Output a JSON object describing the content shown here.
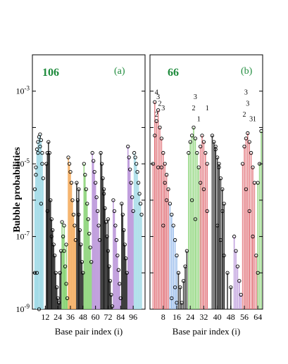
{
  "figure": {
    "ylabel": "Bubble probabilities"
  },
  "chart_data": [
    {
      "type": "scatter",
      "panel_tag": "(a)",
      "panel_number": "106",
      "xlabel": "Base pair index (i)",
      "ylabel": "Bubble probabilities",
      "xlim": [
        1,
        106
      ],
      "ylim": [
        1e-09,
        0.01
      ],
      "yscale": "log",
      "xticks": [
        12,
        24,
        36,
        48,
        60,
        72,
        84,
        96
      ],
      "yticks": [
        "10^-9",
        "10^-7",
        "10^-5",
        "10^-3"
      ],
      "point_colors": {
        "cyan": "#9fd9e6",
        "black": "#111111",
        "orange": "#f2a14a",
        "green": "#7fcf6a",
        "purple": "#b38ad6"
      },
      "series": [
        {
          "color": "cyan",
          "points": [
            [
              2,
              2e-06
            ],
            [
              3,
              8e-06
            ],
            [
              4,
              2.5e-05
            ],
            [
              5,
              4e-05
            ],
            [
              6,
              5.5e-05
            ],
            [
              7,
              6.5e-05
            ],
            [
              8,
              4.5e-05
            ],
            [
              9,
              2e-05
            ],
            [
              3,
              5e-06
            ],
            [
              5,
              2e-05
            ],
            [
              7,
              3e-05
            ],
            [
              9,
              1e-05
            ],
            [
              2,
              1e-08
            ],
            [
              4,
              1e-08
            ],
            [
              6,
              1e-09
            ],
            [
              8,
              8e-07
            ],
            [
              10,
              4e-06
            ]
          ]
        },
        {
          "color": "black",
          "points": [
            [
              13,
              1e-05
            ],
            [
              14,
              2e-05
            ],
            [
              15,
              4e-05
            ],
            [
              16,
              2e-05
            ],
            [
              17,
              1e-06
            ],
            [
              18,
              3e-07
            ],
            [
              19,
              1.5e-07
            ],
            [
              20,
              6e-08
            ],
            [
              21,
              3e-08
            ],
            [
              22,
              1e-08
            ],
            [
              23,
              4e-09
            ],
            [
              24,
              2e-09
            ],
            [
              25,
              1.5e-09
            ],
            [
              26,
              1e-08
            ],
            [
              27,
              4e-08
            ],
            [
              14,
              5e-07
            ],
            [
              18,
              1e-07
            ]
          ]
        },
        {
          "color": "green",
          "points": [
            [
              28,
              2.5e-07
            ],
            [
              29,
              1e-07
            ],
            [
              30,
              4e-08
            ],
            [
              31,
              1.5e-08
            ],
            [
              32,
              5e-09
            ],
            [
              33,
              2e-09
            ],
            [
              30,
              2e-07
            ],
            [
              32,
              6e-08
            ]
          ]
        },
        {
          "color": "orange",
          "points": [
            [
              34,
              1.5e-05
            ],
            [
              35,
              1e-05
            ],
            [
              36,
              6e-06
            ],
            [
              37,
              3e-06
            ],
            [
              38,
              1e-06
            ],
            [
              39,
              4e-07
            ],
            [
              40,
              2e-07
            ],
            [
              41,
              8e-08
            ]
          ]
        },
        {
          "color": "black",
          "points": [
            [
              42,
              3e-06
            ],
            [
              43,
              1e-06
            ],
            [
              44,
              4e-07
            ],
            [
              45,
              1.5e-07
            ],
            [
              46,
              6e-08
            ],
            [
              47,
              2e-08
            ],
            [
              48,
              1e-08
            ],
            [
              44,
              2e-06
            ]
          ]
        },
        {
          "color": "green",
          "points": [
            [
              49,
              1e-05
            ],
            [
              50,
              5e-06
            ],
            [
              51,
              2e-06
            ],
            [
              52,
              8e-07
            ],
            [
              53,
              3e-07
            ],
            [
              54,
              1.2e-07
            ],
            [
              55,
              5e-08
            ],
            [
              56,
              2e-08
            ]
          ]
        },
        {
          "color": "purple",
          "points": [
            [
              57,
              2e-05
            ],
            [
              58,
              1.2e-05
            ],
            [
              59,
              6e-06
            ],
            [
              60,
              3e-06
            ],
            [
              61,
              1.2e-06
            ],
            [
              62,
              5e-07
            ],
            [
              63,
              2e-07
            ],
            [
              64,
              8e-08
            ]
          ]
        },
        {
          "color": "black",
          "points": [
            [
              65,
              2e-05
            ],
            [
              66,
              1e-05
            ],
            [
              67,
              4e-06
            ],
            [
              68,
              1.5e-06
            ],
            [
              69,
              6e-07
            ],
            [
              70,
              2.5e-07
            ],
            [
              71,
              1e-07
            ],
            [
              72,
              4e-08
            ],
            [
              73,
              1.5e-08
            ],
            [
              74,
              6e-09
            ],
            [
              75,
              2.5e-09
            ],
            [
              76,
              1.2e-09
            ],
            [
              68,
              2e-06
            ],
            [
              72,
              3e-07
            ]
          ]
        },
        {
          "color": "purple",
          "points": [
            [
              77,
              1e-06
            ],
            [
              78,
              5e-07
            ],
            [
              79,
              2e-07
            ],
            [
              80,
              8e-08
            ],
            [
              81,
              3e-08
            ],
            [
              82,
              1.2e-08
            ],
            [
              83,
              5e-09
            ],
            [
              84,
              2e-09
            ]
          ]
        },
        {
          "color": "black",
          "points": [
            [
              85,
              8e-07
            ],
            [
              86,
              4e-07
            ],
            [
              87,
              1.5e-07
            ],
            [
              88,
              6e-08
            ],
            [
              89,
              2.5e-08
            ],
            [
              90,
              1e-08
            ]
          ]
        },
        {
          "color": "purple",
          "points": [
            [
              91,
              3e-05
            ],
            [
              92,
              1.5e-05
            ],
            [
              93,
              7e-06
            ],
            [
              94,
              3e-06
            ],
            [
              95,
              1.2e-06
            ],
            [
              96,
              5e-07
            ]
          ]
        },
        {
          "color": "cyan",
          "points": [
            [
              97,
              2e-05
            ],
            [
              98,
              1.5e-05
            ],
            [
              99,
              1e-05
            ],
            [
              100,
              6e-06
            ],
            [
              101,
              3e-06
            ],
            [
              102,
              1.5e-06
            ],
            [
              103,
              8e-07
            ],
            [
              104,
              4e-07
            ]
          ]
        }
      ]
    },
    {
      "type": "scatter",
      "panel_tag": "(b)",
      "panel_number": "66",
      "xlabel": "Base pair index (i)",
      "xlim": [
        1,
        66
      ],
      "ylim": [
        1e-09,
        0.01
      ],
      "yscale": "log",
      "xticks": [
        8,
        16,
        24,
        32,
        40,
        48,
        56,
        64
      ],
      "point_colors": {
        "red": "#e06a72",
        "black": "#111111",
        "green": "#7fcf6a",
        "blue": "#8bb3e8",
        "purple": "#b38ad6"
      },
      "annotations": [
        {
          "text": "4",
          "x": 4,
          "y": 0.0008
        },
        {
          "text": "2",
          "x": 4,
          "y": 0.0002
        },
        {
          "text": "3",
          "x": 5,
          "y": 0.0006
        },
        {
          "text": "2",
          "x": 6,
          "y": 0.0004
        },
        {
          "text": "3",
          "x": 8,
          "y": 0.0003
        },
        {
          "text": "3",
          "x": 27,
          "y": 0.0006
        },
        {
          "text": "2",
          "x": 26,
          "y": 0.0003
        },
        {
          "text": "1",
          "x": 29,
          "y": 0.00015
        },
        {
          "text": "1",
          "x": 34,
          "y": 0.0003
        },
        {
          "text": "3",
          "x": 57,
          "y": 0.0008
        },
        {
          "text": "3",
          "x": 58,
          "y": 0.0004
        },
        {
          "text": "2",
          "x": 56,
          "y": 0.0002
        },
        {
          "text": "3",
          "x": 60,
          "y": 0.00015
        },
        {
          "text": "1",
          "x": 62,
          "y": 0.00015
        }
      ],
      "series": [
        {
          "color": "red",
          "points": [
            [
              2,
              1e-05
            ],
            [
              3,
              0.0005
            ],
            [
              4,
              0.00015
            ],
            [
              5,
              0.0003
            ],
            [
              6,
              0.0001
            ],
            [
              7,
              5e-05
            ],
            [
              8,
              2e-05
            ],
            [
              9,
              1e-05
            ],
            [
              10,
              5e-06
            ],
            [
              11,
              2e-06
            ],
            [
              3,
              6e-05
            ],
            [
              5,
              8e-06
            ],
            [
              7,
              8e-06
            ],
            [
              9,
              3e-06
            ],
            [
              10,
              1e-06
            ],
            [
              8,
              2e-07
            ]
          ]
        },
        {
          "color": "blue",
          "points": [
            [
              12,
              8e-07
            ],
            [
              13,
              4e-07
            ],
            [
              14,
              2e-07
            ],
            [
              15,
              8e-08
            ],
            [
              16,
              3e-08
            ],
            [
              13,
              2e-09
            ],
            [
              15,
              4e-09
            ],
            [
              16,
              1.5e-09
            ]
          ]
        },
        {
          "color": "black",
          "points": [
            [
              17,
              1e-08
            ],
            [
              18,
              4e-09
            ],
            [
              19,
              1.5e-09
            ],
            [
              20,
              6e-09
            ],
            [
              21,
              1.5e-08
            ],
            [
              22,
              4e-08
            ]
          ]
        },
        {
          "color": "green",
          "points": [
            [
              23,
              2e-05
            ],
            [
              24,
              4e-05
            ],
            [
              25,
              6e-05
            ],
            [
              26,
              0.0001
            ],
            [
              27,
              5e-05
            ],
            [
              28,
              2e-05
            ],
            [
              29,
              8e-06
            ],
            [
              30,
              3e-06
            ],
            [
              25,
              1e-06
            ],
            [
              27,
              3e-07
            ]
          ]
        },
        {
          "color": "red",
          "points": [
            [
              30,
              3e-05
            ],
            [
              31,
              6e-05
            ],
            [
              32,
              4e-05
            ],
            [
              33,
              2e-05
            ],
            [
              34,
              1e-05
            ],
            [
              32,
              2e-06
            ],
            [
              34,
              5e-07
            ]
          ]
        },
        {
          "color": "black",
          "points": [
            [
              37,
              6e-05
            ],
            [
              38,
              4e-05
            ],
            [
              39,
              2.5e-05
            ],
            [
              40,
              1.5e-05
            ],
            [
              41,
              8e-06
            ],
            [
              42,
              4e-06
            ],
            [
              43,
              2e-06
            ],
            [
              44,
              8e-07
            ],
            [
              39,
              3e-05
            ],
            [
              41,
              1e-05
            ],
            [
              43,
              5e-07
            ],
            [
              40,
              2e-07
            ],
            [
              42,
              8e-08
            ],
            [
              44,
              3e-08
            ],
            [
              46,
              1e-08
            ],
            [
              48,
              4e-09
            ]
          ]
        },
        {
          "color": "purple",
          "points": [
            [
              50,
              1e-07
            ],
            [
              51,
              4e-08
            ],
            [
              52,
              1.5e-08
            ],
            [
              53,
              6e-09
            ],
            [
              54,
              2.5e-09
            ]
          ]
        },
        {
          "color": "red",
          "points": [
            [
              55,
              1e-05
            ],
            [
              56,
              3e-05
            ],
            [
              57,
              5e-05
            ],
            [
              58,
              7e-05
            ],
            [
              59,
              4e-05
            ],
            [
              60,
              2e-05
            ],
            [
              61,
              8e-06
            ],
            [
              62,
              3e-06
            ],
            [
              57,
              2e-06
            ],
            [
              59,
              5e-07
            ],
            [
              61,
              1e-07
            ],
            [
              63,
              3e-08
            ],
            [
              64,
              1e-08
            ]
          ]
        },
        {
          "color": "green",
          "points": [
            [
              65,
              1e-05
            ],
            [
              66,
              8e-05
            ],
            [
              64,
              3e-06
            ]
          ]
        }
      ]
    }
  ]
}
